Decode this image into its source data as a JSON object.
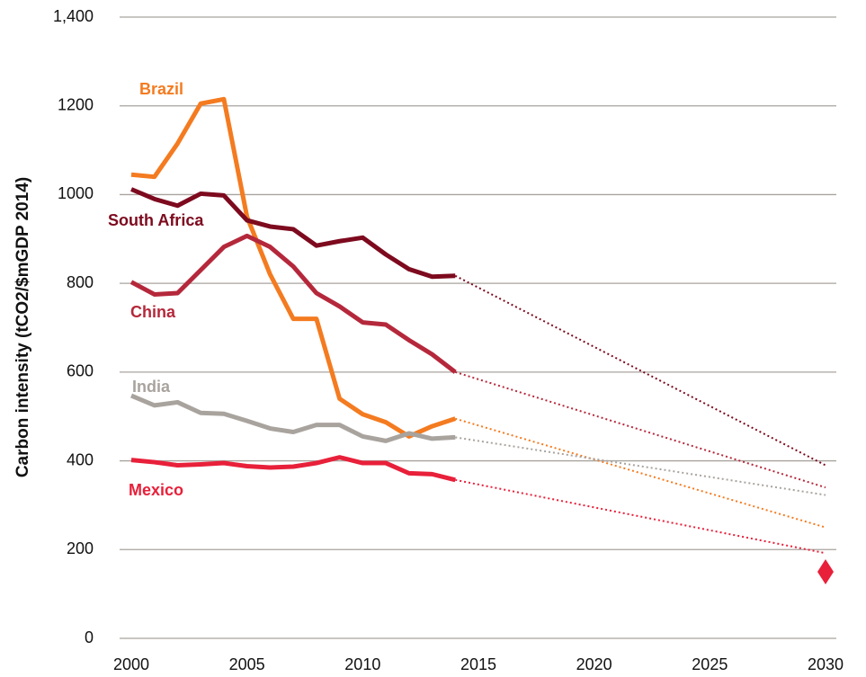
{
  "chart_data": {
    "type": "line",
    "y_label": "Carbon intensity (tCO2/$mGDP 2014)",
    "x": [
      2000,
      2001,
      2002,
      2003,
      2004,
      2005,
      2006,
      2007,
      2008,
      2009,
      2010,
      2011,
      2012,
      2013,
      2014
    ],
    "projection_x": 2030,
    "series": [
      {
        "name": "Brazil",
        "color": "#f47b20",
        "values": [
          1045,
          1040,
          1115,
          1205,
          1215,
          950,
          820,
          720,
          720,
          540,
          505,
          487,
          455,
          478,
          495
        ],
        "projection": 250
      },
      {
        "name": "South Africa",
        "color": "#7d0a1e",
        "values": [
          1012,
          990,
          975,
          1002,
          998,
          942,
          928,
          922,
          885,
          895,
          903,
          865,
          832,
          815,
          817
        ],
        "projection": 390
      },
      {
        "name": "China",
        "color": "#b5283b",
        "values": [
          803,
          775,
          778,
          830,
          882,
          907,
          882,
          838,
          778,
          748,
          712,
          707,
          672,
          640,
          600
        ],
        "projection": 340
      },
      {
        "name": "India",
        "color": "#a9a39e",
        "values": [
          547,
          525,
          532,
          508,
          506,
          490,
          473,
          465,
          481,
          481,
          455,
          445,
          462,
          450,
          453
        ],
        "projection": 323
      },
      {
        "name": "Mexico",
        "color": "#e8203a",
        "values": [
          402,
          397,
          390,
          392,
          395,
          388,
          385,
          387,
          395,
          408,
          395,
          395,
          372,
          370,
          357
        ],
        "projection": 192
      }
    ],
    "target": {
      "x": 2030,
      "value": 150,
      "color": "#e8203a"
    },
    "xlim": [
      2000,
      2030
    ],
    "xticks": [
      2000,
      2005,
      2010,
      2015,
      2020,
      2025,
      2030
    ],
    "ylim": [
      0,
      1400
    ],
    "yticks": [
      0,
      200,
      400,
      600,
      800,
      1000,
      1200,
      {
        "value": 1400,
        "label": "1,400"
      }
    ],
    "grid": true
  }
}
